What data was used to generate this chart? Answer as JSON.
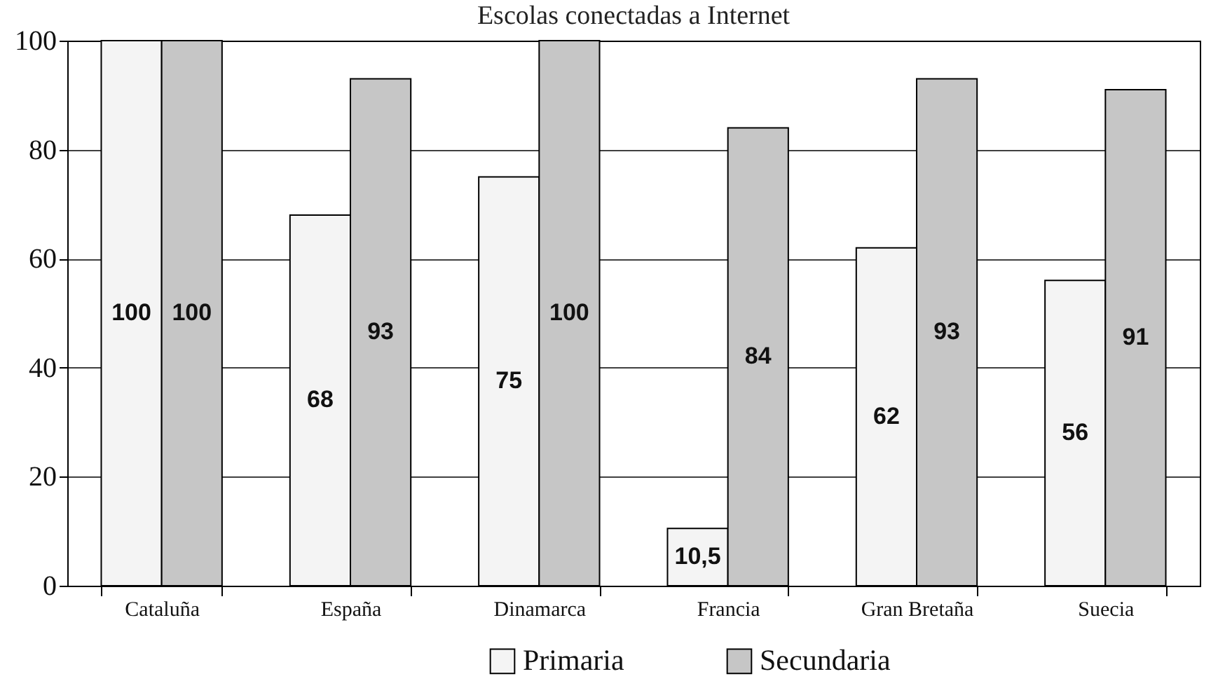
{
  "chart_data": {
    "type": "bar",
    "title": "Escolas conectadas a Internet",
    "categories": [
      "Cataluña",
      "España",
      "Dinamarca",
      "Francia",
      "Gran Bretaña",
      "Suecia"
    ],
    "series": [
      {
        "name": "Primaria",
        "color": "#f4f4f4",
        "values": [
          100,
          68,
          75,
          10.5,
          62,
          56
        ],
        "value_labels": [
          "100",
          "68",
          "75",
          "10,5",
          "62",
          "56"
        ]
      },
      {
        "name": "Secundaria",
        "color": "#c6c6c6",
        "values": [
          100,
          93,
          100,
          84,
          93,
          91
        ],
        "value_labels": [
          "100",
          "93",
          "100",
          "84",
          "93",
          "91"
        ]
      }
    ],
    "ylim": [
      0,
      100
    ],
    "yticks": [
      0,
      20,
      40,
      60,
      80,
      100
    ],
    "grid": "y",
    "legend": "bottom"
  }
}
